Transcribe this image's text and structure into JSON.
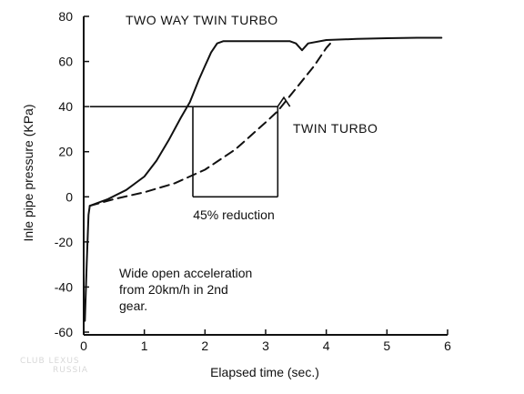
{
  "chart_data": {
    "type": "line",
    "title": "",
    "xlabel": "Elapsed time (sec.)",
    "ylabel": "Inle pipe pressure (KPa)",
    "xlim": [
      0,
      6
    ],
    "ylim": [
      -60,
      80
    ],
    "xticks": [
      0,
      1,
      2,
      3,
      4,
      5,
      6
    ],
    "yticks": [
      -60,
      -40,
      -20,
      0,
      20,
      40,
      60,
      80
    ],
    "xtick_labels": [
      "0",
      "1",
      "2",
      "3",
      "4",
      "5",
      "6"
    ],
    "ytick_labels": [
      "-60",
      "-40",
      "-20",
      "0",
      "20",
      "40",
      "60",
      "80"
    ],
    "grid": false,
    "series": [
      {
        "name": "TWO WAY TWIN TURBO",
        "style": "solid",
        "color": "#111111",
        "x": [
          0,
          0.02,
          0.05,
          0.08,
          0.1,
          0.4,
          0.7,
          1.0,
          1.2,
          1.4,
          1.6,
          1.75,
          1.9,
          2.0,
          2.05,
          2.1,
          2.2,
          2.3,
          2.5,
          3.0,
          3.4,
          3.5,
          3.6,
          3.7,
          4.0,
          4.5,
          5.0,
          5.5,
          5.9
        ],
        "y": [
          -45,
          -55,
          -30,
          -8,
          -4,
          -1,
          3,
          9,
          16,
          25,
          35,
          42,
          52,
          58,
          61,
          64,
          68,
          69,
          69,
          69,
          69,
          68,
          65,
          68,
          69.5,
          70,
          70.3,
          70.5,
          70.5
        ]
      },
      {
        "name": "TWIN TURBO",
        "style": "dashed",
        "color": "#111111",
        "x": [
          0.1,
          0.5,
          1.0,
          1.5,
          2.0,
          2.5,
          3.0,
          3.2,
          3.5,
          3.8,
          4.0,
          4.1
        ],
        "y": [
          -4,
          -1,
          2,
          6,
          12,
          21,
          33,
          38,
          48,
          58,
          66,
          69
        ]
      }
    ],
    "reference_line": {
      "y": 40,
      "x_start": 0.1,
      "x_end": 3.2,
      "style": "solid"
    },
    "reference_bump": {
      "x": [
        3.2,
        3.3,
        3.4
      ],
      "y": [
        40,
        44,
        40
      ]
    },
    "bracket": {
      "x_start": 1.8,
      "x_end": 3.2,
      "y_top": 40,
      "y_bottom": 0,
      "label": "45% reduction"
    },
    "annotation_lines": [
      "Wide open acceleration",
      "from 20km/h in 2nd",
      "gear."
    ],
    "series_labels": [
      "TWO WAY TWIN TURBO",
      "TWIN TURBO"
    ],
    "watermark_lines": [
      "CLUB LEXUS",
      "RUSSIA"
    ]
  }
}
